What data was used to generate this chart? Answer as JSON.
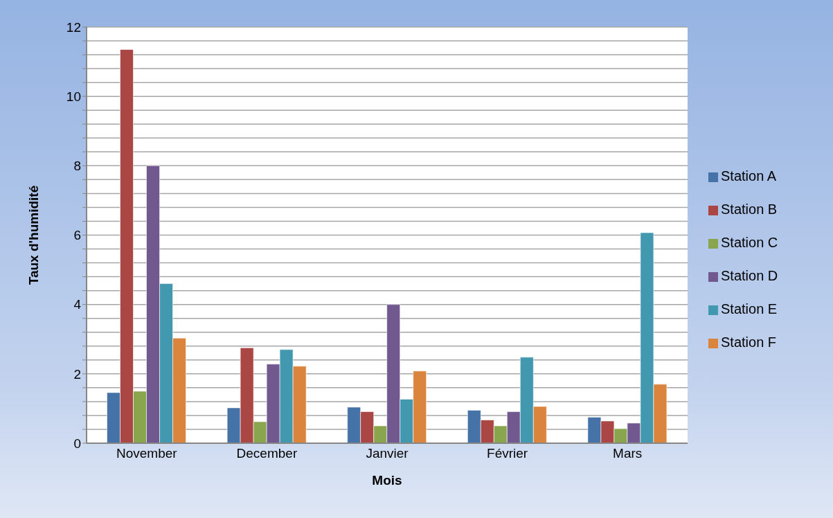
{
  "chart_data": {
    "type": "bar",
    "xlabel": "Mois",
    "ylabel": "Taux d'humidité",
    "categories": [
      "November",
      "December",
      "Janvier",
      "Février",
      "Mars"
    ],
    "series": [
      {
        "name": "Station A",
        "color": "#4572a7",
        "values": [
          1.46,
          1.02,
          1.04,
          0.95,
          0.75
        ]
      },
      {
        "name": "Station B",
        "color": "#aa4643",
        "values": [
          11.35,
          2.75,
          0.91,
          0.67,
          0.64
        ]
      },
      {
        "name": "Station C",
        "color": "#89a54e",
        "values": [
          1.5,
          0.62,
          0.5,
          0.5,
          0.42
        ]
      },
      {
        "name": "Station D",
        "color": "#71588f",
        "values": [
          8.0,
          2.28,
          4.0,
          0.91,
          0.58
        ]
      },
      {
        "name": "Station E",
        "color": "#4198af",
        "values": [
          4.6,
          2.7,
          1.27,
          2.48,
          6.07
        ]
      },
      {
        "name": "Station F",
        "color": "#db843d",
        "values": [
          3.03,
          2.22,
          2.08,
          1.06,
          1.7
        ]
      }
    ],
    "ylim": [
      0,
      12
    ],
    "yticks": [
      0,
      {
        "value": 0.4,
        "label": null
      },
      {
        "value": 0.8,
        "label": null
      },
      {
        "value": 1.2,
        "label": null
      },
      {
        "value": 1.6,
        "label": null
      },
      2,
      {
        "value": 2.4,
        "label": null
      },
      {
        "value": 2.8,
        "label": null
      },
      {
        "value": 3.2,
        "label": null
      },
      {
        "value": 3.6,
        "label": null
      },
      4,
      {
        "value": 4.4,
        "label": null
      },
      {
        "value": 4.8,
        "label": null
      },
      {
        "value": 5.2,
        "label": null
      },
      {
        "value": 5.6,
        "label": null
      },
      6,
      {
        "value": 6.4,
        "label": null
      },
      {
        "value": 6.8,
        "label": null
      },
      {
        "value": 7.2,
        "label": null
      },
      {
        "value": 7.6,
        "label": null
      },
      8,
      {
        "value": 8.4,
        "label": null
      },
      {
        "value": 8.8,
        "label": null
      },
      {
        "value": 9.2,
        "label": null
      },
      {
        "value": 9.6,
        "label": null
      },
      10,
      {
        "value": 10.4,
        "label": null
      },
      {
        "value": 10.8,
        "label": null
      },
      {
        "value": 11.2,
        "label": null
      },
      {
        "value": 11.6,
        "label": null
      },
      12
    ],
    "grid": "y",
    "legend": "right"
  }
}
